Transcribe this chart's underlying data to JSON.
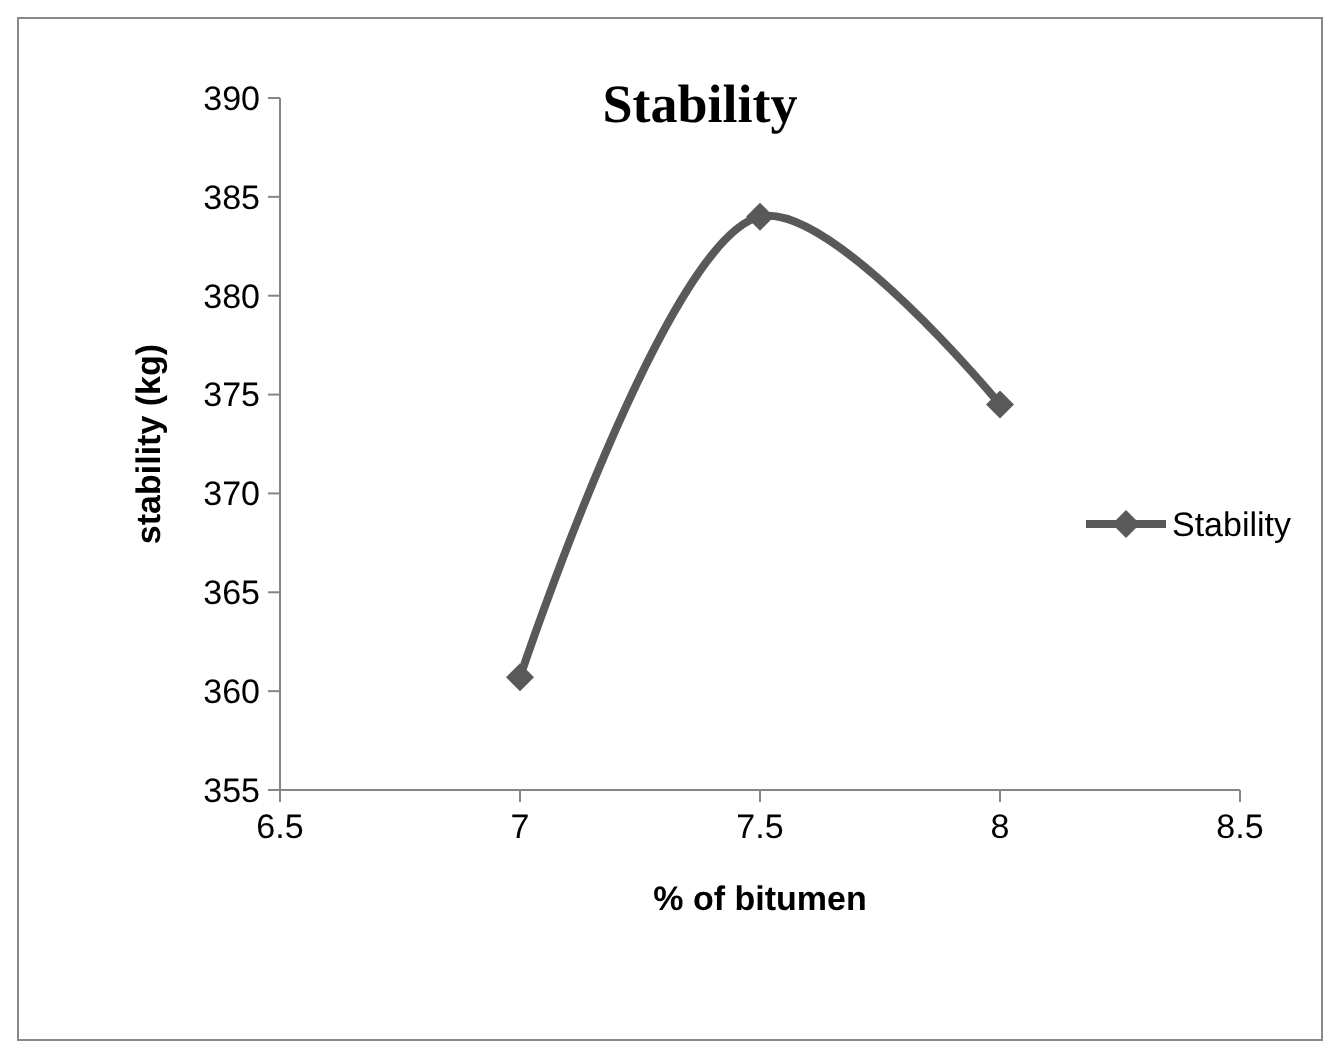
{
  "chart_data": {
    "type": "line",
    "title": "Stability",
    "xlabel": "% of bitumen",
    "ylabel": "stability (kg)",
    "x": [
      7,
      7.5,
      8
    ],
    "series": [
      {
        "name": "Stability",
        "color": "#595959",
        "values": [
          360.7,
          384,
          374.5
        ]
      }
    ],
    "xlim": [
      6.5,
      8.5
    ],
    "xticks": [
      6.5,
      7,
      7.5,
      8,
      8.5
    ],
    "ylim": [
      355,
      390
    ],
    "yticks": [
      355,
      360,
      365,
      370,
      375,
      380,
      385,
      390
    ],
    "marker": "diamond",
    "line_style": "solid",
    "legend": "right",
    "grid": false
  }
}
